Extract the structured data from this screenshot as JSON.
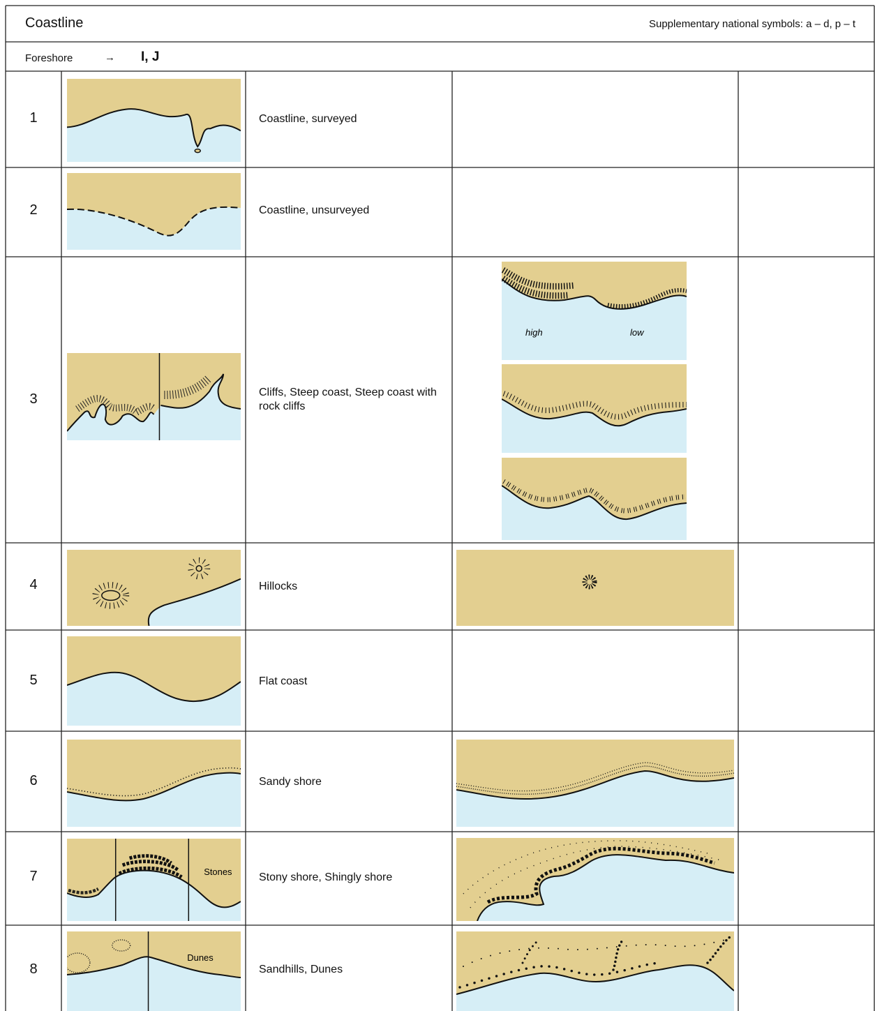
{
  "header": {
    "title": "Coastline",
    "supplementary": "Supplementary national symbols: a – d, p – t"
  },
  "foreshore": {
    "label": "Foreshore",
    "arrow": "→",
    "reference": "I, J"
  },
  "rows": [
    {
      "number": "1",
      "description": "Coastline, surveyed"
    },
    {
      "number": "2",
      "description": "Coastline, unsurveyed"
    },
    {
      "number": "3",
      "description": "Cliffs, Steep coast, Steep coast with rock cliffs",
      "image_labels": [
        "high",
        "low"
      ]
    },
    {
      "number": "4",
      "description": "Hillocks"
    },
    {
      "number": "5",
      "description": "Flat coast"
    },
    {
      "number": "6",
      "description": "Sandy shore"
    },
    {
      "number": "7",
      "description": "Stony shore, Shingly shore",
      "image_labels": [
        "Stones"
      ]
    },
    {
      "number": "8",
      "description": "Sandhills, Dunes",
      "image_labels": [
        "Dunes"
      ]
    }
  ]
}
